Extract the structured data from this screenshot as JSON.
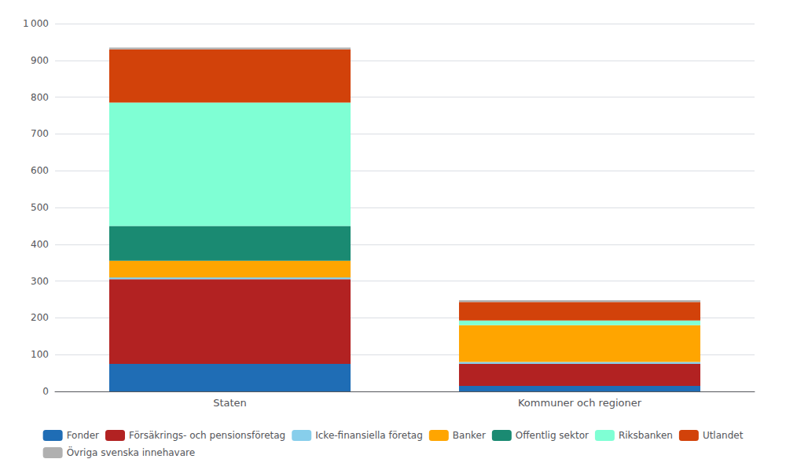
{
  "chart_data": {
    "type": "bar",
    "stacked": true,
    "categories": [
      "Staten",
      "Kommuner och regioner"
    ],
    "series": [
      {
        "name": "Fonder",
        "color": "#1f6db5",
        "values": [
          75,
          15
        ]
      },
      {
        "name": "Försäkrings- och pensionsföretag",
        "color": "#b22222",
        "values": [
          230,
          60
        ]
      },
      {
        "name": "Icke-finansiella företag",
        "color": "#87ceeb",
        "values": [
          5,
          5
        ]
      },
      {
        "name": "Banker",
        "color": "#ffa500",
        "values": [
          45,
          100
        ]
      },
      {
        "name": "Offentlig sektor",
        "color": "#1a8a72",
        "values": [
          95,
          0
        ]
      },
      {
        "name": "Riksbanken",
        "color": "#7fffd4",
        "values": [
          335,
          13
        ]
      },
      {
        "name": "Utlandet",
        "color": "#d2420a",
        "values": [
          145,
          50
        ]
      },
      {
        "name": "Övriga svenska innehavare",
        "color": "#b0b0b0",
        "values": [
          5,
          5
        ]
      }
    ],
    "ylim": [
      0,
      1000
    ],
    "yticks": [
      0,
      100,
      200,
      300,
      400,
      500,
      600,
      700,
      800,
      900,
      {
        "value": 1000,
        "label": "1 000"
      }
    ],
    "grid": true,
    "legend": "bottom"
  }
}
